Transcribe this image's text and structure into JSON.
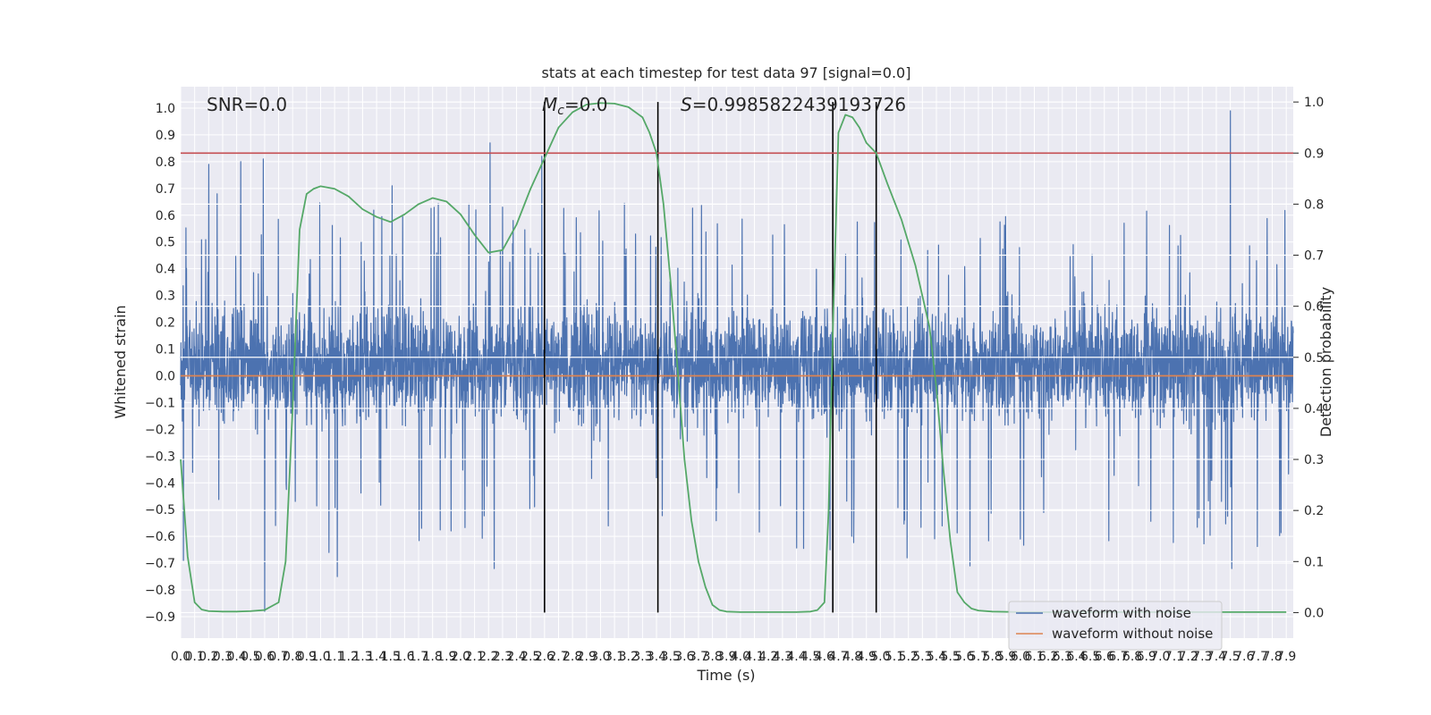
{
  "chart_data": {
    "type": "line",
    "title": "stats at each timestep for test data 97 [signal=0.0]",
    "xlabel": "Time (s)",
    "ylabel": "Whitened strain",
    "ylabel_right": "Detection probability",
    "xlim": [
      0.0,
      7.95
    ],
    "ylim": [
      -0.98,
      1.08
    ],
    "ylim_right": [
      -0.05,
      1.03
    ],
    "x_ticks": [
      0.0,
      0.1,
      0.2,
      0.3,
      0.4,
      0.5,
      0.6,
      0.7,
      0.8,
      0.9,
      1.0,
      1.1,
      1.2,
      1.3,
      1.4,
      1.5,
      1.6,
      1.7,
      1.8,
      1.9,
      2.0,
      2.1,
      2.2,
      2.3,
      2.4,
      2.5,
      2.6,
      2.7,
      2.8,
      2.9,
      3.0,
      3.1,
      3.2,
      3.3,
      3.4,
      3.5,
      3.6,
      3.7,
      3.8,
      3.9,
      4.0,
      4.1,
      4.2,
      4.3,
      4.4,
      4.5,
      4.6,
      4.7,
      4.8,
      4.9,
      5.0,
      5.1,
      5.2,
      5.3,
      5.4,
      5.5,
      5.6,
      5.7,
      5.8,
      5.9,
      6.0,
      6.1,
      6.2,
      6.3,
      6.4,
      6.5,
      6.6,
      6.7,
      6.8,
      6.9,
      7.0,
      7.1,
      7.2,
      7.3,
      7.4,
      7.5,
      7.6,
      7.7,
      7.8,
      7.9
    ],
    "x_tick_labels": [
      "0.0",
      "0.1",
      "0.2",
      "0.3",
      "0.4",
      "0.5",
      "0.6",
      "0.7",
      "0.8",
      "0.9",
      "1.0",
      "1.1",
      "1.2",
      "1.3",
      "1.4",
      "1.5",
      "1.6",
      "1.7",
      "1.8",
      "1.9",
      "2.0",
      "2.1",
      "2.2",
      "2.3",
      "2.4",
      "2.5",
      "2.6",
      "2.7",
      "2.8",
      "2.9",
      "3.0",
      "3.1",
      "3.2",
      "3.3",
      "3.4",
      "3.5",
      "3.6",
      "3.7",
      "3.8",
      "3.9",
      "4.0",
      "4.1",
      "4.2",
      "4.3",
      "4.4",
      "4.5",
      "4.6",
      "4.7",
      "4.8",
      "4.9",
      "5.0",
      "5.1",
      "5.2",
      "5.3",
      "5.4",
      "5.5",
      "5.6",
      "5.7",
      "5.8",
      "5.9",
      "6.0",
      "6.1",
      "6.2",
      "6.3",
      "6.4",
      "6.5",
      "6.6",
      "6.7",
      "6.8",
      "6.9",
      "7.0",
      "7.1",
      "7.2",
      "7.3",
      "7.4",
      "7.5",
      "7.6",
      "7.7",
      "7.8",
      "7.9"
    ],
    "y_ticks": [
      1.0,
      0.9,
      0.8,
      0.7,
      0.6,
      0.5,
      0.4,
      0.3,
      0.2,
      0.1,
      0.0,
      -0.1,
      -0.2,
      -0.3,
      -0.4,
      -0.5,
      -0.6,
      -0.7,
      -0.8,
      -0.9
    ],
    "y_tick_labels": [
      "1.0",
      "0.9",
      "0.8",
      "0.7",
      "0.6",
      "0.5",
      "0.4",
      "0.3",
      "0.2",
      "0.1",
      "0.0",
      "−0.1",
      "−0.2",
      "−0.3",
      "−0.4",
      "−0.5",
      "−0.6",
      "−0.7",
      "−0.8",
      "−0.9"
    ],
    "y_right_ticks": [
      1.0,
      0.9,
      0.8,
      0.7,
      0.6,
      0.5,
      0.4,
      0.3,
      0.2,
      0.1,
      0.0
    ],
    "y_right_tick_labels": [
      "1.0",
      "0.9",
      "0.8",
      "0.7",
      "0.6",
      "0.5",
      "0.4",
      "0.3",
      "0.2",
      "0.1",
      "0.0"
    ],
    "annotations": {
      "snr": "SNR=0.0",
      "mc_symbol": "M",
      "mc_sub": "c",
      "mc_value": "=0.0",
      "s_symbol": "S",
      "s_value": "=0.9985822439193726"
    },
    "threshold": {
      "value": 0.9,
      "axis": "right",
      "color": "#c44e52"
    },
    "vertical_lines": [
      2.6,
      3.41,
      4.66,
      4.97
    ],
    "vertical_line_range_right": [
      0.0,
      1.0
    ],
    "series": [
      {
        "name": "waveform with noise",
        "color": "#4c72b0",
        "kind": "noise",
        "description_values": {
          "points": 4000,
          "band": [
            -0.33,
            0.42
          ],
          "spikes": [
            {
              "x": 0.02,
              "y": -0.69
            },
            {
              "x": 0.2,
              "y": 0.79
            },
            {
              "x": 0.26,
              "y": 0.68
            },
            {
              "x": 0.43,
              "y": 0.8
            },
            {
              "x": 0.59,
              "y": 0.81
            },
            {
              "x": 0.6,
              "y": -0.88
            },
            {
              "x": 1.06,
              "y": -0.66
            },
            {
              "x": 1.12,
              "y": -0.75
            },
            {
              "x": 1.51,
              "y": 0.71
            },
            {
              "x": 2.21,
              "y": 0.87
            },
            {
              "x": 2.24,
              "y": -0.72
            },
            {
              "x": 2.58,
              "y": 0.82
            },
            {
              "x": 4.64,
              "y": -0.65
            },
            {
              "x": 5.19,
              "y": -0.68
            },
            {
              "x": 7.5,
              "y": 0.99
            },
            {
              "x": 7.51,
              "y": -0.72
            },
            {
              "x": 5.64,
              "y": -0.71
            },
            {
              "x": 6.0,
              "y": -0.61
            }
          ]
        }
      },
      {
        "name": "waveform without noise",
        "color": "#dd8452",
        "kind": "constant",
        "value": 0.0
      },
      {
        "name": "Detection probability",
        "color": "#55a868",
        "axis": "right",
        "x": [
          0.0,
          0.05,
          0.1,
          0.15,
          0.2,
          0.3,
          0.4,
          0.5,
          0.6,
          0.7,
          0.75,
          0.8,
          0.85,
          0.9,
          0.95,
          1.0,
          1.1,
          1.2,
          1.3,
          1.4,
          1.5,
          1.6,
          1.7,
          1.8,
          1.9,
          2.0,
          2.1,
          2.2,
          2.3,
          2.4,
          2.5,
          2.6,
          2.7,
          2.8,
          2.9,
          3.0,
          3.1,
          3.2,
          3.3,
          3.35,
          3.4,
          3.45,
          3.5,
          3.55,
          3.6,
          3.65,
          3.7,
          3.75,
          3.8,
          3.85,
          3.9,
          4.0,
          4.2,
          4.4,
          4.5,
          4.55,
          4.6,
          4.63,
          4.66,
          4.7,
          4.75,
          4.8,
          4.85,
          4.9,
          4.97,
          5.05,
          5.15,
          5.25,
          5.35,
          5.4,
          5.45,
          5.5,
          5.55,
          5.6,
          5.65,
          5.7,
          5.8,
          6.0,
          6.5,
          7.0,
          7.5,
          7.9
        ],
        "y": [
          0.3,
          0.11,
          0.02,
          0.006,
          0.003,
          0.002,
          0.002,
          0.003,
          0.005,
          0.02,
          0.1,
          0.4,
          0.75,
          0.82,
          0.83,
          0.835,
          0.83,
          0.815,
          0.79,
          0.775,
          0.765,
          0.78,
          0.8,
          0.812,
          0.805,
          0.78,
          0.74,
          0.705,
          0.71,
          0.76,
          0.83,
          0.89,
          0.95,
          0.98,
          0.995,
          0.998,
          0.997,
          0.99,
          0.97,
          0.94,
          0.9,
          0.8,
          0.65,
          0.48,
          0.3,
          0.18,
          0.1,
          0.05,
          0.015,
          0.005,
          0.002,
          0.001,
          0.001,
          0.001,
          0.002,
          0.005,
          0.02,
          0.2,
          0.55,
          0.94,
          0.975,
          0.97,
          0.95,
          0.92,
          0.9,
          0.84,
          0.77,
          0.68,
          0.56,
          0.44,
          0.28,
          0.14,
          0.04,
          0.02,
          0.008,
          0.004,
          0.002,
          0.001,
          0.001,
          0.001,
          0.001,
          0.001
        ]
      }
    ],
    "legend": {
      "placement": "lower-right",
      "entries": [
        "waveform with noise",
        "waveform without noise"
      ]
    }
  }
}
